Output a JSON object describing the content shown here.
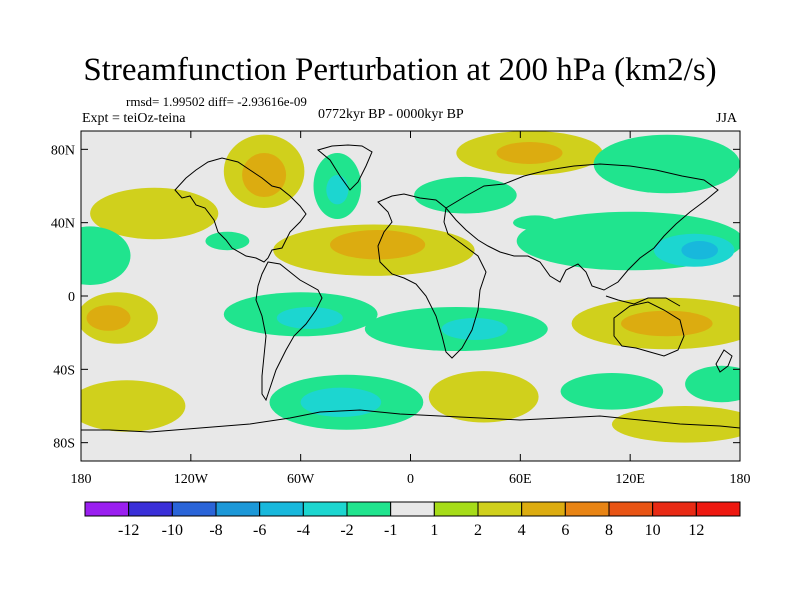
{
  "chart_data": {
    "type": "map-contour",
    "title": "Streamfunction Perturbation at 200 hPa (km2/s)",
    "stats_text": "rmsd= 1.99502 diff= -2.93616e-09",
    "experiment": "Expt = teiOz-teina",
    "period": "0772kyr BP - 0000kyr BP",
    "season": "JJA",
    "lon_range": [
      -180,
      180
    ],
    "lat_range": [
      -90,
      90
    ],
    "x_ticks": [
      {
        "value": -180,
        "label": "180"
      },
      {
        "value": -120,
        "label": "120W"
      },
      {
        "value": -60,
        "label": "60W"
      },
      {
        "value": 0,
        "label": "0"
      },
      {
        "value": 60,
        "label": "60E"
      },
      {
        "value": 120,
        "label": "120E"
      },
      {
        "value": 180,
        "label": "180"
      }
    ],
    "y_ticks": [
      {
        "value": 80,
        "label": "80N"
      },
      {
        "value": 40,
        "label": "40N"
      },
      {
        "value": 0,
        "label": "0"
      },
      {
        "value": -40,
        "label": "40S"
      },
      {
        "value": -80,
        "label": "80S"
      }
    ],
    "colorbar": {
      "levels": [
        "-12",
        "-10",
        "-8",
        "-6",
        "-4",
        "-2",
        "-1",
        "1",
        "2",
        "4",
        "6",
        "8",
        "10",
        "12"
      ],
      "colors": [
        "#9a1ff0",
        "#3a2fd8",
        "#2a64d8",
        "#1c98d8",
        "#18b8dc",
        "#1cd6d0",
        "#20e48e",
        "#e8e8e8",
        "#a6dc18",
        "#d0d01c",
        "#dcac10",
        "#e88414",
        "#e85414",
        "#e82a14",
        "#ee1810"
      ]
    },
    "anomalies": [
      {
        "lon": -140,
        "lat": 45,
        "rlon": 35,
        "rlat": 14,
        "value": 2
      },
      {
        "lon": -80,
        "lat": 68,
        "rlon": 22,
        "rlat": 20,
        "value": 2
      },
      {
        "lon": -80,
        "lat": 66,
        "rlon": 12,
        "rlat": 12,
        "value": 4
      },
      {
        "lon": -40,
        "lat": 60,
        "rlon": 13,
        "rlat": 18,
        "value": -2
      },
      {
        "lon": -40,
        "lat": 58,
        "rlon": 6,
        "rlat": 8,
        "value": -4
      },
      {
        "lon": -100,
        "lat": 30,
        "rlon": 12,
        "rlat": 5,
        "value": -2
      },
      {
        "lon": -175,
        "lat": 22,
        "rlon": 22,
        "rlat": 16,
        "value": -2
      },
      {
        "lon": -20,
        "lat": 25,
        "rlon": 55,
        "rlat": 14,
        "value": 2
      },
      {
        "lon": -18,
        "lat": 28,
        "rlon": 26,
        "rlat": 8,
        "value": 4
      },
      {
        "lon": 65,
        "lat": 78,
        "rlon": 40,
        "rlat": 12,
        "value": 2
      },
      {
        "lon": 65,
        "lat": 78,
        "rlon": 18,
        "rlat": 6,
        "value": 4
      },
      {
        "lon": 140,
        "lat": 72,
        "rlon": 40,
        "rlat": 16,
        "value": -2
      },
      {
        "lon": 30,
        "lat": 55,
        "rlon": 28,
        "rlat": 10,
        "value": -2
      },
      {
        "lon": 120,
        "lat": 30,
        "rlon": 62,
        "rlat": 16,
        "value": -2
      },
      {
        "lon": 155,
        "lat": 25,
        "rlon": 22,
        "rlat": 9,
        "value": -4
      },
      {
        "lon": 158,
        "lat": 25,
        "rlon": 10,
        "rlat": 5,
        "value": -6
      },
      {
        "lon": 68,
        "lat": 40,
        "rlon": 12,
        "rlat": 4,
        "value": -2
      },
      {
        "lon": -160,
        "lat": -12,
        "rlon": 22,
        "rlat": 14,
        "value": 2
      },
      {
        "lon": -165,
        "lat": -12,
        "rlon": 12,
        "rlat": 7,
        "value": 4
      },
      {
        "lon": -60,
        "lat": -10,
        "rlon": 42,
        "rlat": 12,
        "value": -2
      },
      {
        "lon": -55,
        "lat": -12,
        "rlon": 18,
        "rlat": 6,
        "value": -4
      },
      {
        "lon": 25,
        "lat": -18,
        "rlon": 50,
        "rlat": 12,
        "value": -2
      },
      {
        "lon": 35,
        "lat": -18,
        "rlon": 18,
        "rlat": 6,
        "value": -4
      },
      {
        "lon": 140,
        "lat": -15,
        "rlon": 52,
        "rlat": 14,
        "value": 2
      },
      {
        "lon": 140,
        "lat": -15,
        "rlon": 25,
        "rlat": 7,
        "value": 4
      },
      {
        "lon": 170,
        "lat": -48,
        "rlon": 20,
        "rlat": 10,
        "value": -2
      },
      {
        "lon": -155,
        "lat": -60,
        "rlon": 32,
        "rlat": 14,
        "value": 2
      },
      {
        "lon": -35,
        "lat": -58,
        "rlon": 42,
        "rlat": 15,
        "value": -2
      },
      {
        "lon": -38,
        "lat": -58,
        "rlon": 22,
        "rlat": 8,
        "value": -4
      },
      {
        "lon": 40,
        "lat": -55,
        "rlon": 30,
        "rlat": 14,
        "value": 2
      },
      {
        "lon": 110,
        "lat": -52,
        "rlon": 28,
        "rlat": 10,
        "value": -2
      },
      {
        "lon": 150,
        "lat": -70,
        "rlon": 40,
        "rlat": 10,
        "value": 2
      }
    ]
  }
}
